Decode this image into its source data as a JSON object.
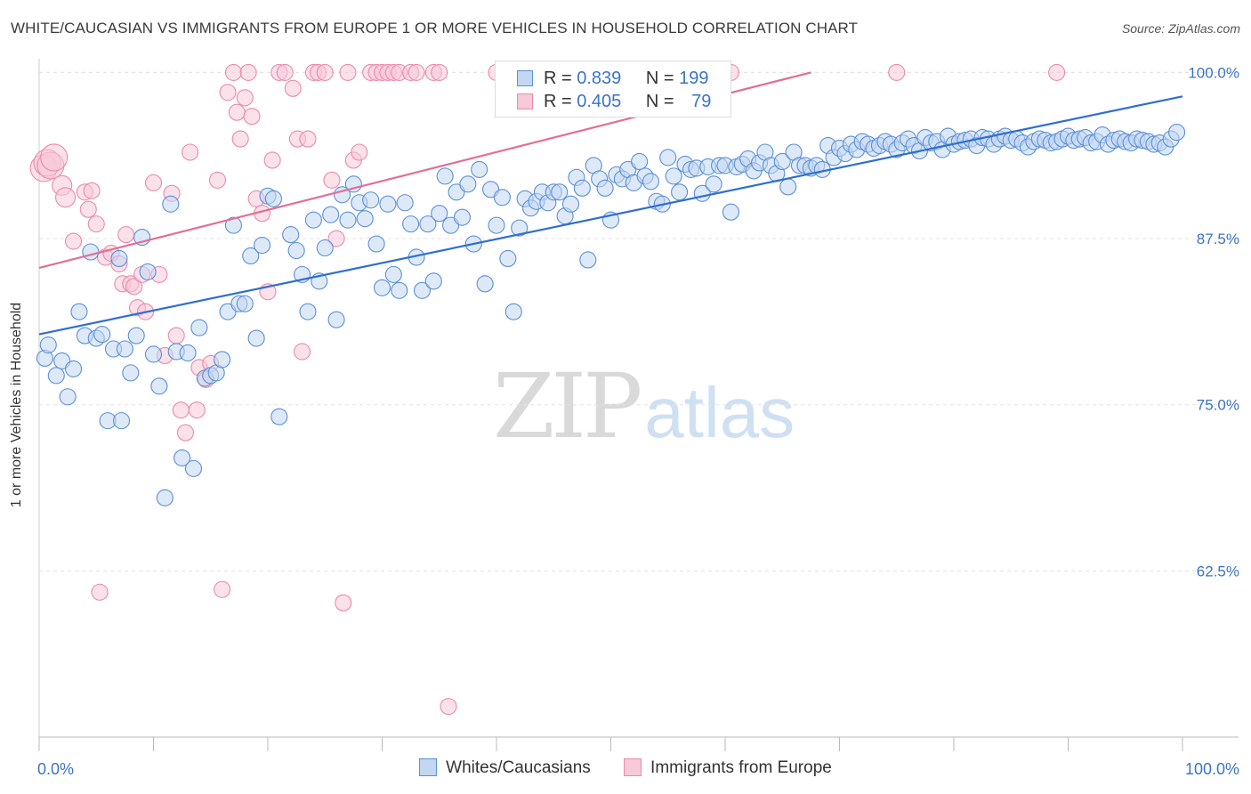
{
  "title": "WHITE/CAUCASIAN VS IMMIGRANTS FROM EUROPE 1 OR MORE VEHICLES IN HOUSEHOLD CORRELATION CHART",
  "source": "Source: ZipAtlas.com",
  "watermark": {
    "part1": "ZIP",
    "part2": "atlas"
  },
  "colors": {
    "blue": "#5b8fd6",
    "blue_fill": "#c3d7f2",
    "pink": "#e98bab",
    "pink_fill": "#f8c9d8",
    "blue_line": "#2f6fce",
    "pink_line": "#e06f98",
    "tick_label": "#3b73c6"
  },
  "legend_top": {
    "rows": [
      {
        "r_label": "R =",
        "r_value": "0.839",
        "n_label": "N =",
        "n_value": "199"
      },
      {
        "r_label": "R =",
        "r_value": "0.405",
        "n_label": "N =",
        "n_value": "79"
      }
    ]
  },
  "legend_bottom": [
    "Whites/Caucasians",
    "Immigrants from Europe"
  ],
  "chart_data": {
    "type": "scatter",
    "title": "WHITE/CAUCASIAN VS IMMIGRANTS FROM EUROPE 1 OR MORE VEHICLES IN HOUSEHOLD CORRELATION CHART",
    "xlabel": "",
    "ylabel": "1 or more Vehicles in Household",
    "xlim": [
      0,
      100
    ],
    "ylim": [
      50,
      101.3
    ],
    "x_tick_labels": {
      "left": "0.0%",
      "right": "100.0%"
    },
    "y_ticks": [
      {
        "value": 62.5,
        "label": "62.5%"
      },
      {
        "value": 75.0,
        "label": "75.0%"
      },
      {
        "value": 87.5,
        "label": "87.5%"
      },
      {
        "value": 100.0,
        "label": "100.0%"
      }
    ],
    "series": [
      {
        "name": "Whites/Caucasians",
        "r": 0.839,
        "n": 199,
        "trend": {
          "x0": 0,
          "y0": 80.3,
          "x1": 100,
          "y1": 98.2
        },
        "points": [
          [
            0.5,
            78.5
          ],
          [
            0.8,
            79.5
          ],
          [
            1.5,
            77.2
          ],
          [
            2,
            78.3
          ],
          [
            2.5,
            75.6
          ],
          [
            3,
            77.7
          ],
          [
            3.5,
            82
          ],
          [
            4,
            80.2
          ],
          [
            4.5,
            86.5
          ],
          [
            5,
            80
          ],
          [
            5.5,
            80.3
          ],
          [
            6,
            73.8
          ],
          [
            6.5,
            79.2
          ],
          [
            7,
            86
          ],
          [
            7.2,
            73.8
          ],
          [
            7.5,
            79.2
          ],
          [
            8,
            77.4
          ],
          [
            8.5,
            80.2
          ],
          [
            9,
            87.6
          ],
          [
            9.5,
            85
          ],
          [
            10,
            78.8
          ],
          [
            10.5,
            76.4
          ],
          [
            11,
            68
          ],
          [
            11.5,
            90.1
          ],
          [
            12,
            79
          ],
          [
            12.5,
            71
          ],
          [
            13,
            78.9
          ],
          [
            13.5,
            70.2
          ],
          [
            14,
            80.8
          ],
          [
            14.5,
            77
          ],
          [
            15,
            77.2
          ],
          [
            15.5,
            77.4
          ],
          [
            16,
            78.4
          ],
          [
            16.5,
            82
          ],
          [
            17,
            88.5
          ],
          [
            17.5,
            82.6
          ],
          [
            18,
            82.6
          ],
          [
            18.5,
            86.2
          ],
          [
            19,
            80
          ],
          [
            19.5,
            87
          ],
          [
            20,
            90.7
          ],
          [
            20.5,
            90.5
          ],
          [
            21,
            74.1
          ],
          [
            22,
            87.8
          ],
          [
            22.5,
            86.6
          ],
          [
            23,
            84.8
          ],
          [
            23.5,
            82
          ],
          [
            24,
            88.9
          ],
          [
            24.5,
            84.3
          ],
          [
            25,
            86.8
          ],
          [
            25.5,
            89.3
          ],
          [
            26,
            81.4
          ],
          [
            26.5,
            90.8
          ],
          [
            27,
            88.9
          ],
          [
            27.5,
            91.6
          ],
          [
            28,
            90.2
          ],
          [
            28.5,
            89
          ],
          [
            29,
            90.4
          ],
          [
            29.5,
            87.1
          ],
          [
            30,
            83.8
          ],
          [
            30.5,
            90.1
          ],
          [
            31,
            84.8
          ],
          [
            31.5,
            83.6
          ],
          [
            32,
            90.2
          ],
          [
            32.5,
            88.6
          ],
          [
            33,
            86.1
          ],
          [
            33.5,
            83.6
          ],
          [
            34,
            88.6
          ],
          [
            34.5,
            84.3
          ],
          [
            35,
            89.4
          ],
          [
            35.5,
            92.2
          ],
          [
            36,
            88.5
          ],
          [
            36.5,
            91
          ],
          [
            37,
            89.1
          ],
          [
            37.5,
            91.6
          ],
          [
            38,
            87.1
          ],
          [
            38.5,
            92.7
          ],
          [
            39,
            84.1
          ],
          [
            39.5,
            91.2
          ],
          [
            40,
            88.5
          ],
          [
            40.5,
            90.6
          ],
          [
            41,
            86
          ],
          [
            41.5,
            82
          ],
          [
            42,
            88.3
          ],
          [
            42.5,
            90.5
          ],
          [
            43,
            89.8
          ],
          [
            43.5,
            90.3
          ],
          [
            44,
            91
          ],
          [
            44.5,
            90.2
          ],
          [
            45,
            91
          ],
          [
            45.5,
            91
          ],
          [
            46,
            89.2
          ],
          [
            46.5,
            90.1
          ],
          [
            47,
            92.1
          ],
          [
            47.5,
            91.3
          ],
          [
            48,
            85.9
          ],
          [
            48.5,
            93
          ],
          [
            49,
            92
          ],
          [
            49.5,
            91.3
          ],
          [
            50,
            88.9
          ],
          [
            50.5,
            92.3
          ],
          [
            51,
            92
          ],
          [
            51.5,
            92.7
          ],
          [
            52,
            91.7
          ],
          [
            52.5,
            93.3
          ],
          [
            53,
            92.2
          ],
          [
            53.5,
            91.8
          ],
          [
            54,
            90.3
          ],
          [
            54.5,
            90.1
          ],
          [
            55,
            93.6
          ],
          [
            55.5,
            92.2
          ],
          [
            56,
            91
          ],
          [
            56.5,
            93.1
          ],
          [
            57,
            92.7
          ],
          [
            57.5,
            92.8
          ],
          [
            58,
            90.9
          ],
          [
            58.5,
            92.9
          ],
          [
            59,
            91.6
          ],
          [
            59.5,
            93
          ],
          [
            60,
            93
          ],
          [
            60.5,
            89.5
          ],
          [
            61,
            92.9
          ],
          [
            61.5,
            93.1
          ],
          [
            62,
            93.5
          ],
          [
            62.5,
            92.6
          ],
          [
            63,
            93.2
          ],
          [
            63.5,
            94
          ],
          [
            64,
            93
          ],
          [
            64.5,
            92.4
          ],
          [
            65,
            93.3
          ],
          [
            65.5,
            91.4
          ],
          [
            66,
            94
          ],
          [
            66.5,
            93
          ],
          [
            67,
            93
          ],
          [
            67.5,
            92.8
          ],
          [
            68,
            93
          ],
          [
            68.5,
            92.7
          ],
          [
            69,
            94.5
          ],
          [
            69.5,
            93.6
          ],
          [
            70,
            94.3
          ],
          [
            70.5,
            93.9
          ],
          [
            71,
            94.6
          ],
          [
            71.5,
            94.2
          ],
          [
            72,
            94.8
          ],
          [
            72.5,
            94.6
          ],
          [
            73,
            94.3
          ],
          [
            73.5,
            94.5
          ],
          [
            74,
            94.8
          ],
          [
            74.5,
            94.6
          ],
          [
            75,
            94.2
          ],
          [
            75.5,
            94.7
          ],
          [
            76,
            95
          ],
          [
            76.5,
            94.5
          ],
          [
            77,
            94.1
          ],
          [
            77.5,
            95.1
          ],
          [
            78,
            94.7
          ],
          [
            78.5,
            94.8
          ],
          [
            79,
            94.2
          ],
          [
            79.5,
            95.2
          ],
          [
            80,
            94.6
          ],
          [
            80.5,
            94.8
          ],
          [
            81,
            94.9
          ],
          [
            81.5,
            95
          ],
          [
            82,
            94.5
          ],
          [
            82.5,
            95.1
          ],
          [
            83,
            95
          ],
          [
            83.5,
            94.6
          ],
          [
            84,
            95
          ],
          [
            84.5,
            95.2
          ],
          [
            85,
            94.9
          ],
          [
            85.5,
            95
          ],
          [
            86,
            94.7
          ],
          [
            86.5,
            94.4
          ],
          [
            87,
            94.8
          ],
          [
            87.5,
            95
          ],
          [
            88,
            94.9
          ],
          [
            88.5,
            94.7
          ],
          [
            89,
            94.8
          ],
          [
            89.5,
            95
          ],
          [
            90,
            95.2
          ],
          [
            90.5,
            94.9
          ],
          [
            91,
            95
          ],
          [
            91.5,
            95.1
          ],
          [
            92,
            94.7
          ],
          [
            92.5,
            94.8
          ],
          [
            93,
            95.3
          ],
          [
            93.5,
            94.6
          ],
          [
            94,
            94.9
          ],
          [
            94.5,
            95
          ],
          [
            95,
            94.8
          ],
          [
            95.5,
            94.7
          ],
          [
            96,
            95
          ],
          [
            96.5,
            94.9
          ],
          [
            97,
            94.8
          ],
          [
            97.5,
            94.6
          ],
          [
            98,
            94.7
          ],
          [
            98.5,
            94.4
          ],
          [
            99,
            95
          ],
          [
            99.5,
            95.5
          ]
        ]
      },
      {
        "name": "Immigrants from Europe",
        "r": 0.405,
        "n": 79,
        "trend": {
          "x0": 0,
          "y0": 85.3,
          "x1": 67.5,
          "y1": 100.0
        },
        "points": [
          [
            0.4,
            92.8
          ],
          [
            0.7,
            93.2
          ],
          [
            1,
            93
          ],
          [
            1.3,
            93.6
          ],
          [
            2,
            91.5
          ],
          [
            2.3,
            90.6
          ],
          [
            3,
            87.3
          ],
          [
            4,
            91
          ],
          [
            4.3,
            89.7
          ],
          [
            4.6,
            91.1
          ],
          [
            5,
            88.6
          ],
          [
            5.3,
            60.9
          ],
          [
            5.8,
            86.1
          ],
          [
            6.3,
            86.4
          ],
          [
            7,
            85.6
          ],
          [
            7.3,
            84.1
          ],
          [
            7.6,
            87.8
          ],
          [
            8,
            84.1
          ],
          [
            8.3,
            83.9
          ],
          [
            8.6,
            82.3
          ],
          [
            9,
            84.8
          ],
          [
            9.3,
            82
          ],
          [
            10,
            91.7
          ],
          [
            10.5,
            84.8
          ],
          [
            11,
            78.7
          ],
          [
            11.6,
            90.9
          ],
          [
            12,
            80.2
          ],
          [
            12.4,
            74.6
          ],
          [
            12.8,
            72.9
          ],
          [
            13.2,
            94
          ],
          [
            13.8,
            74.6
          ],
          [
            14,
            77.8
          ],
          [
            14.6,
            76.9
          ],
          [
            15,
            78.1
          ],
          [
            15.6,
            91.9
          ],
          [
            16,
            61.1
          ],
          [
            16.5,
            98.5
          ],
          [
            17,
            100
          ],
          [
            17.3,
            97
          ],
          [
            17.6,
            95
          ],
          [
            18,
            98.1
          ],
          [
            18.3,
            100
          ],
          [
            18.6,
            96.7
          ],
          [
            19,
            90.5
          ],
          [
            19.5,
            89.4
          ],
          [
            20,
            83.5
          ],
          [
            20.4,
            93.4
          ],
          [
            21,
            100
          ],
          [
            21.5,
            100
          ],
          [
            22.2,
            98.8
          ],
          [
            22.6,
            95
          ],
          [
            23,
            79
          ],
          [
            23.5,
            95
          ],
          [
            24,
            100
          ],
          [
            24.4,
            100
          ],
          [
            25,
            100
          ],
          [
            25.6,
            91.9
          ],
          [
            26,
            87.5
          ],
          [
            26.6,
            60.1
          ],
          [
            27,
            100
          ],
          [
            27.5,
            93.4
          ],
          [
            28,
            94
          ],
          [
            29,
            100
          ],
          [
            29.5,
            100
          ],
          [
            30,
            100
          ],
          [
            30.5,
            100
          ],
          [
            31,
            100
          ],
          [
            31.5,
            100
          ],
          [
            32.5,
            100
          ],
          [
            33,
            100
          ],
          [
            34.5,
            100
          ],
          [
            35,
            100
          ],
          [
            35.8,
            52.3
          ],
          [
            40,
            100
          ],
          [
            40.8,
            100
          ],
          [
            56,
            100
          ],
          [
            60.5,
            100
          ],
          [
            75,
            100
          ],
          [
            89,
            100
          ]
        ]
      }
    ]
  }
}
